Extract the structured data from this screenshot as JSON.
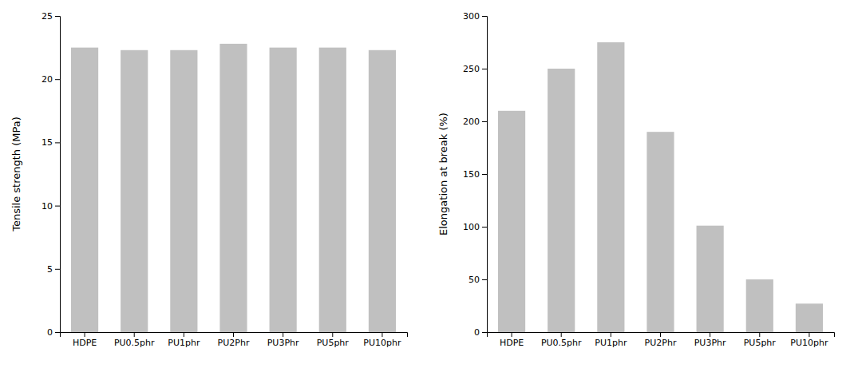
{
  "chart_data": [
    {
      "type": "bar",
      "categories": [
        "HDPE",
        "PU0.5phr",
        "PU1phr",
        "PU2Phr",
        "PU3Phr",
        "PU5phr",
        "PU10phr"
      ],
      "values": [
        22.5,
        22.3,
        22.3,
        22.8,
        22.5,
        22.5,
        22.3
      ],
      "color": "#C0C0C0",
      "ylabel": "Tensile strength (MPa)",
      "ylim": [
        0,
        25
      ],
      "yticks": [
        0,
        5,
        10,
        15,
        20,
        25
      ],
      "grid": false
    },
    {
      "type": "bar",
      "categories": [
        "HDPE",
        "PU0.5phr",
        "PU1phr",
        "PU2Phr",
        "PU3Phr",
        "PU5phr",
        "PU10phr"
      ],
      "values": [
        210,
        250,
        275,
        190,
        101,
        50,
        27
      ],
      "color": "#C0C0C0",
      "ylabel": "Elongation at break (%)",
      "ylim": [
        0,
        300
      ],
      "yticks": [
        0,
        50,
        100,
        150,
        200,
        250,
        300
      ],
      "grid": false
    }
  ]
}
